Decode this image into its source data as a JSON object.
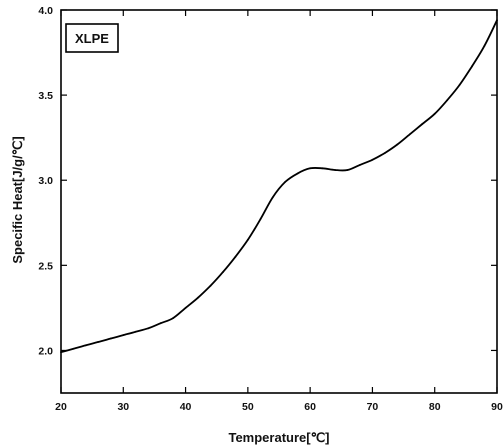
{
  "chart_data": {
    "type": "line",
    "xlabel": "Temperature[℃]",
    "ylabel": "Specific Heat[J/g/℃]",
    "xlim": [
      20,
      90
    ],
    "ylim": [
      1.75,
      4.0
    ],
    "x_ticks": [
      20,
      30,
      40,
      50,
      60,
      70,
      80,
      90
    ],
    "y_ticks": [
      2.0,
      2.5,
      3.0,
      3.5,
      4.0
    ],
    "x_tick_labels": [
      "20",
      "30",
      "40",
      "50",
      "60",
      "70",
      "80",
      "90"
    ],
    "y_tick_labels": [
      "2.0",
      "2.5",
      "3.0",
      "3.5",
      "4.0"
    ],
    "grid": false,
    "legend_position": "top-left",
    "series": [
      {
        "name": "XLPE",
        "color": "#000000",
        "x": [
          20,
          22,
          24,
          26,
          28,
          30,
          32,
          34,
          36,
          38,
          40,
          42,
          44,
          46,
          48,
          50,
          52,
          54,
          56,
          58,
          60,
          62,
          64,
          66,
          68,
          70,
          72,
          74,
          76,
          78,
          80,
          82,
          84,
          86,
          88,
          90
        ],
        "y": [
          1.99,
          2.01,
          2.03,
          2.05,
          2.07,
          2.09,
          2.11,
          2.13,
          2.16,
          2.19,
          2.25,
          2.31,
          2.38,
          2.46,
          2.55,
          2.65,
          2.77,
          2.9,
          2.99,
          3.04,
          3.07,
          3.07,
          3.06,
          3.06,
          3.09,
          3.12,
          3.16,
          3.21,
          3.27,
          3.33,
          3.39,
          3.47,
          3.56,
          3.67,
          3.79,
          3.94
        ]
      }
    ]
  }
}
